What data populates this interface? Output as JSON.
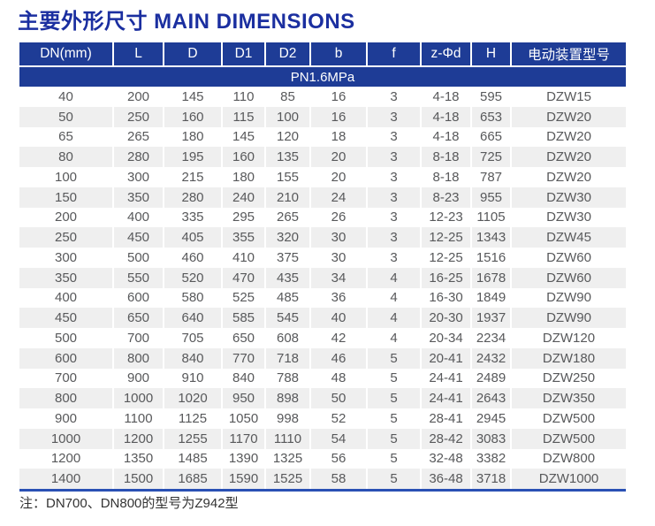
{
  "title": "主要外形尺寸 MAIN DIMENSIONS",
  "table": {
    "columns": [
      "DN(mm)",
      "L",
      "D",
      "D1",
      "D2",
      "b",
      "f",
      "z-Φd",
      "H",
      "电动装置型号"
    ],
    "pressure_class": "PN1.6MPa",
    "rows": [
      [
        "40",
        "200",
        "145",
        "110",
        "85",
        "16",
        "3",
        "4-18",
        "595",
        "DZW15"
      ],
      [
        "50",
        "250",
        "160",
        "115",
        "100",
        "16",
        "3",
        "4-18",
        "653",
        "DZW20"
      ],
      [
        "65",
        "265",
        "180",
        "145",
        "120",
        "18",
        "3",
        "4-18",
        "665",
        "DZW20"
      ],
      [
        "80",
        "280",
        "195",
        "160",
        "135",
        "20",
        "3",
        "8-18",
        "725",
        "DZW20"
      ],
      [
        "100",
        "300",
        "215",
        "180",
        "155",
        "20",
        "3",
        "8-18",
        "787",
        "DZW20"
      ],
      [
        "150",
        "350",
        "280",
        "240",
        "210",
        "24",
        "3",
        "8-23",
        "955",
        "DZW30"
      ],
      [
        "200",
        "400",
        "335",
        "295",
        "265",
        "26",
        "3",
        "12-23",
        "1105",
        "DZW30"
      ],
      [
        "250",
        "450",
        "405",
        "355",
        "320",
        "30",
        "3",
        "12-25",
        "1343",
        "DZW45"
      ],
      [
        "300",
        "500",
        "460",
        "410",
        "375",
        "30",
        "3",
        "12-25",
        "1516",
        "DZW60"
      ],
      [
        "350",
        "550",
        "520",
        "470",
        "435",
        "34",
        "4",
        "16-25",
        "1678",
        "DZW60"
      ],
      [
        "400",
        "600",
        "580",
        "525",
        "485",
        "36",
        "4",
        "16-30",
        "1849",
        "DZW90"
      ],
      [
        "450",
        "650",
        "640",
        "585",
        "545",
        "40",
        "4",
        "20-30",
        "1937",
        "DZW90"
      ],
      [
        "500",
        "700",
        "705",
        "650",
        "608",
        "42",
        "4",
        "20-34",
        "2234",
        "DZW120"
      ],
      [
        "600",
        "800",
        "840",
        "770",
        "718",
        "46",
        "5",
        "20-41",
        "2432",
        "DZW180"
      ],
      [
        "700",
        "900",
        "910",
        "840",
        "788",
        "48",
        "5",
        "24-41",
        "2489",
        "DZW250"
      ],
      [
        "800",
        "1000",
        "1020",
        "950",
        "898",
        "50",
        "5",
        "24-41",
        "2643",
        "DZW350"
      ],
      [
        "900",
        "1100",
        "1125",
        "1050",
        "998",
        "52",
        "5",
        "28-41",
        "2945",
        "DZW500"
      ],
      [
        "1000",
        "1200",
        "1255",
        "1170",
        "1110",
        "54",
        "5",
        "28-42",
        "3083",
        "DZW500"
      ],
      [
        "1200",
        "1350",
        "1485",
        "1390",
        "1325",
        "56",
        "5",
        "32-48",
        "3382",
        "DZW800"
      ],
      [
        "1400",
        "1500",
        "1685",
        "1590",
        "1525",
        "58",
        "5",
        "36-48",
        "3718",
        "DZW1000"
      ]
    ]
  },
  "note": "注：DN700、DN800的型号为Z942型",
  "colors": {
    "title_text": "#1b2fa0",
    "header_bg": "#1e3c96",
    "stripe_bg": "#efefef",
    "bottom_rule": "#2a50b4",
    "cell_text": "#58595b"
  }
}
